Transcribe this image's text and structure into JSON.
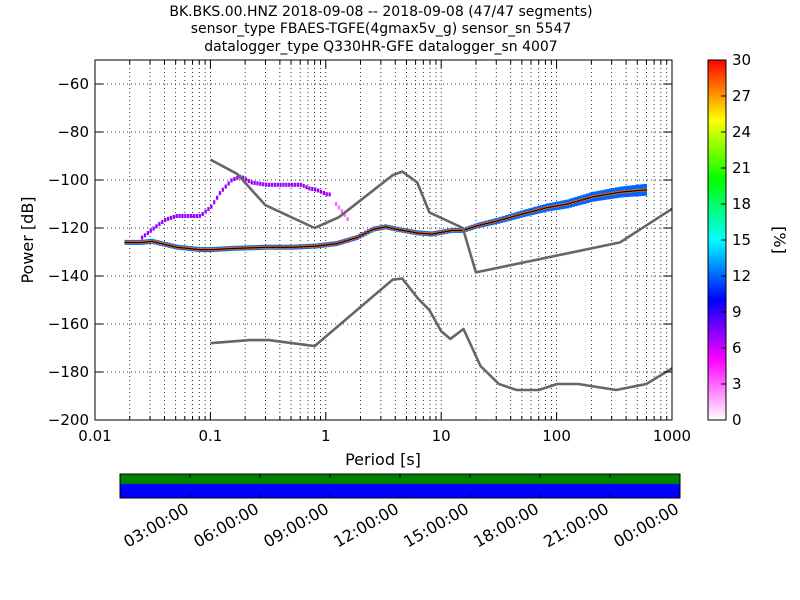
{
  "chart_data": {
    "type": "heatmap",
    "title_lines": [
      "BK.BKS.00.HNZ   2018-09-08 -- 2018-09-08  (47/47 segments)",
      "sensor_type FBAES-TGFE(4gmax5v_g) sensor_sn 5547",
      "datalogger_type Q330HR-GFE datalogger_sn 4007"
    ],
    "xlabel": "Period [s]",
    "ylabel": "Power [dB]",
    "xscale": "log",
    "xlim": [
      0.01,
      1000
    ],
    "ylim": [
      -200,
      -50
    ],
    "x_ticks": [
      {
        "value": 0.01,
        "label": "0.01"
      },
      {
        "value": 0.1,
        "label": "0.1"
      },
      {
        "value": 1,
        "label": "1"
      },
      {
        "value": 10,
        "label": "10"
      },
      {
        "value": 100,
        "label": "100"
      },
      {
        "value": 1000,
        "label": "1000"
      }
    ],
    "y_ticks": [
      {
        "value": -60,
        "label": "−60"
      },
      {
        "value": -80,
        "label": "−80"
      },
      {
        "value": -100,
        "label": "−100"
      },
      {
        "value": -120,
        "label": "−120"
      },
      {
        "value": -140,
        "label": "−140"
      },
      {
        "value": -160,
        "label": "−160"
      },
      {
        "value": -180,
        "label": "−180"
      },
      {
        "value": -200,
        "label": "−200"
      }
    ],
    "grid": true,
    "colorbar": {
      "label": "[%]",
      "range": [
        0,
        30
      ],
      "ticks": [
        {
          "value": 0,
          "label": "0"
        },
        {
          "value": 3,
          "label": "3"
        },
        {
          "value": 6,
          "label": "6"
        },
        {
          "value": 9,
          "label": "9"
        },
        {
          "value": 12,
          "label": "12"
        },
        {
          "value": 15,
          "label": "15"
        },
        {
          "value": 18,
          "label": "18"
        },
        {
          "value": 21,
          "label": "21"
        },
        {
          "value": 24,
          "label": "24"
        },
        {
          "value": 27,
          "label": "27"
        },
        {
          "value": 30,
          "label": "30"
        }
      ],
      "colors": [
        "#ffffff",
        "#ff00ff",
        "#0000ff",
        "#00ffff",
        "#00ff00",
        "#ffff00",
        "#ff0000"
      ]
    },
    "reference_models": [
      {
        "x": [
          0.1,
          0.17,
          0.3,
          0.8,
          1.3,
          3.8,
          4.6,
          6.2,
          7.9,
          15.4,
          20,
          354.8,
          1000
        ],
        "y": [
          -91.5,
          -97.4,
          -110.5,
          -120,
          -115.5,
          -98,
          -96.5,
          -101,
          -113.5,
          -120,
          -138.5,
          -126,
          -112
        ]
      },
      {
        "x": [
          0.1,
          0.22,
          0.32,
          0.8,
          3.8,
          4.6,
          6.3,
          7.9,
          10,
          12,
          15.6,
          21.9,
          31.6,
          45,
          70,
          101,
          154,
          328,
          600,
          1000
        ],
        "y": [
          -168,
          -166.7,
          -166.7,
          -169.2,
          -141.5,
          -141.1,
          -149.4,
          -154.2,
          -163,
          -166.2,
          -162.1,
          -177.5,
          -185,
          -187.5,
          -187.5,
          -185,
          -185,
          -187.5,
          -185,
          -178.5
        ]
      }
    ],
    "density_bands": [
      {
        "name": "",
        "color_value": 28,
        "x": [
          0.018,
          0.025,
          0.03,
          0.05,
          0.08,
          0.1,
          0.15,
          0.3,
          0.5,
          0.8,
          1.2,
          1.8,
          2.5,
          3.2,
          4,
          6,
          8,
          12,
          15,
          20,
          30,
          50,
          80,
          120,
          200,
          350,
          600
        ],
        "y": [
          -126,
          -126,
          -125.5,
          -128,
          -129,
          -129,
          -128.5,
          -128,
          -128,
          -127.5,
          -126.5,
          -124,
          -120.5,
          -119.5,
          -120.5,
          -122,
          -122.5,
          -121,
          -121,
          -119,
          -117,
          -114,
          -111.5,
          -110,
          -107,
          -105,
          -104
        ]
      },
      {
        "name": "",
        "color_value": 7,
        "x": [
          0.025,
          0.03,
          0.035,
          0.04,
          0.05,
          0.06,
          0.08,
          0.1,
          0.12,
          0.15,
          0.18,
          0.22,
          0.3,
          0.4,
          0.5,
          0.6,
          0.7,
          0.8,
          0.9,
          1.0,
          1.1
        ],
        "y": [
          -124,
          -121,
          -118.5,
          -116.5,
          -115,
          -115,
          -115,
          -111,
          -105,
          -100,
          -98.5,
          -101,
          -102,
          -102,
          -102,
          -102,
          -103.5,
          -104,
          -105,
          -106,
          -106
        ]
      },
      {
        "name": "",
        "color_value": 3,
        "x": [
          1.2,
          1.4,
          1.6
        ],
        "y": [
          -110,
          -114,
          -118
        ]
      }
    ]
  },
  "time_bar": {
    "labels": [
      "03:00:00",
      "06:00:00",
      "09:00:00",
      "12:00:00",
      "15:00:00",
      "18:00:00",
      "21:00:00",
      "00:00:00"
    ],
    "rows": [
      {
        "color": "#008000",
        "fraction": 1.0
      },
      {
        "color": "#0000ff",
        "fraction": 1.0
      }
    ]
  }
}
